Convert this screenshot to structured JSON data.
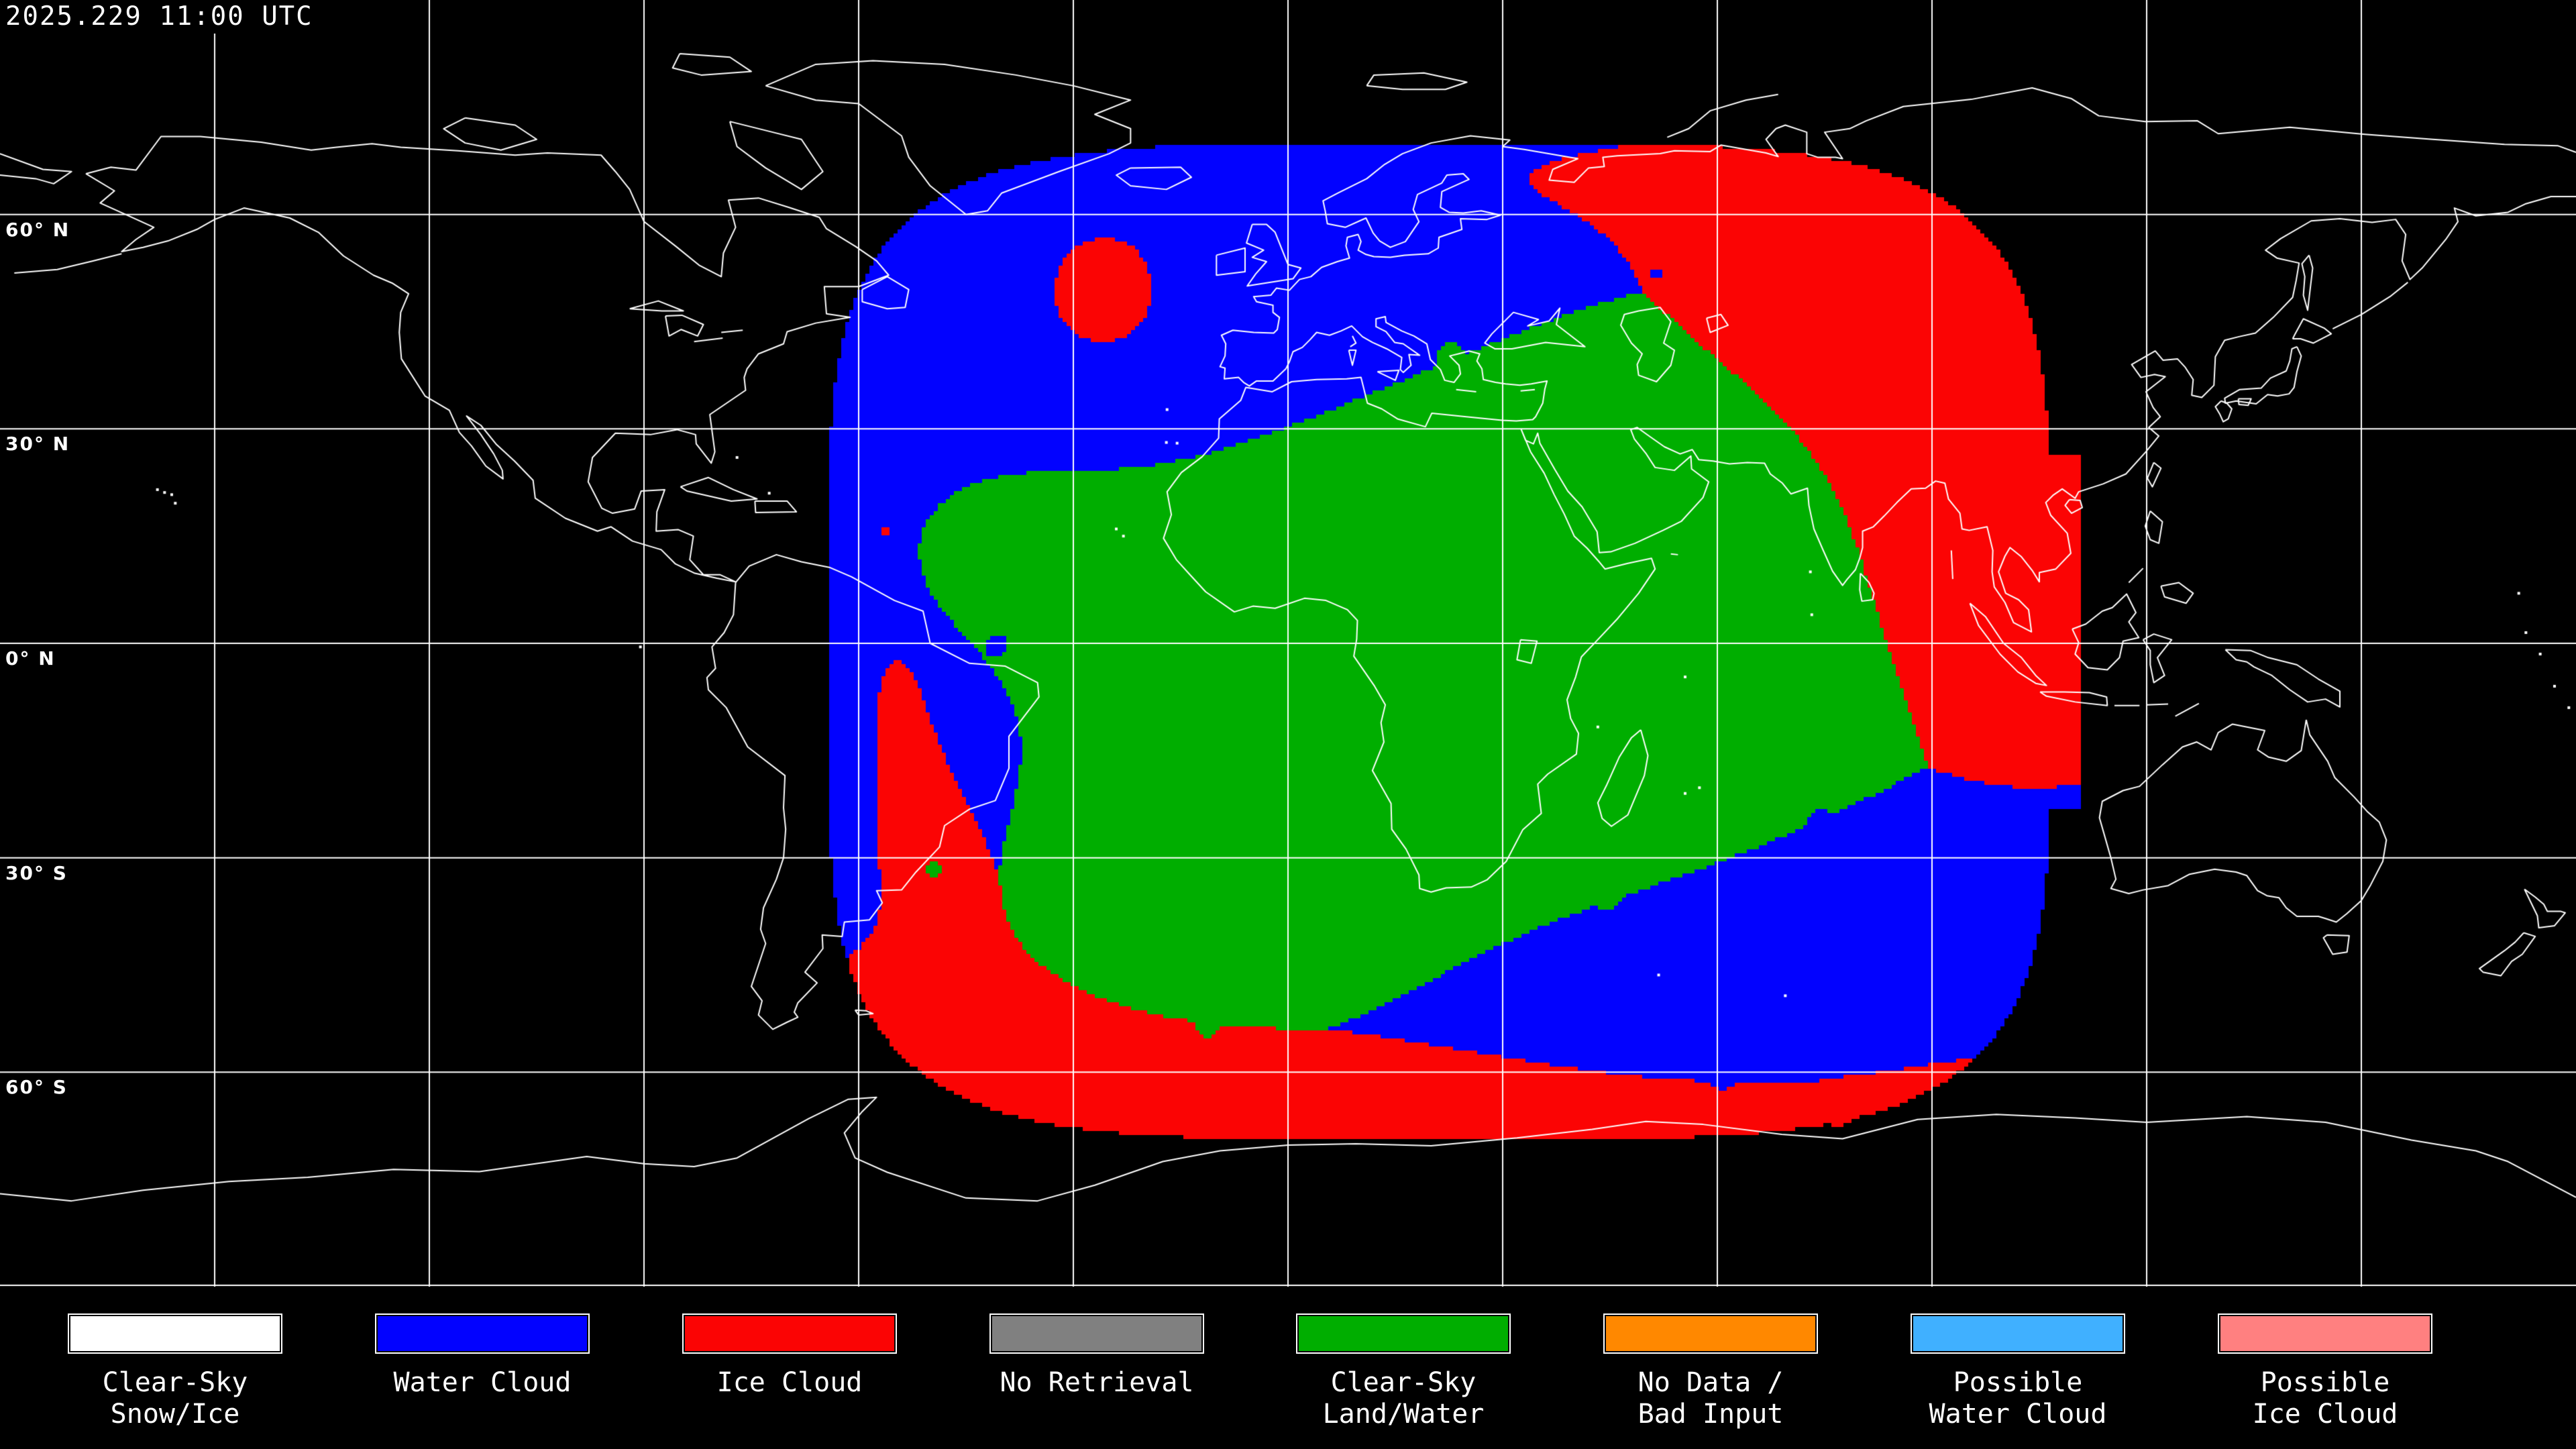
{
  "header": {
    "timestamp": "2025.229 11:00 UTC"
  },
  "map": {
    "background_color": "#000000",
    "gridline_color": "#FFFFFF",
    "coastline_color": "#FFFFFF",
    "grid_interval_deg": 30,
    "latitude_labels": [
      {
        "text": "60° N",
        "lat": 60
      },
      {
        "text": "30° N",
        "lat": 30
      },
      {
        "text": "0° N",
        "lat": 0
      },
      {
        "text": "30° S",
        "lat": -30
      },
      {
        "text": "60° S",
        "lat": -60
      }
    ]
  },
  "classes": {
    "clear_sky_snow_ice": "#FFFFFF",
    "water_cloud": "#0202FF",
    "ice_cloud": "#FB0404",
    "no_retrieval": "#808080",
    "clear_sky_land_water": "#00AE00",
    "no_data_bad_input": "#FF8800",
    "possible_water_cloud": "#40B0FF",
    "possible_ice_cloud": "#FF8080"
  },
  "legend": {
    "items": [
      {
        "key": "clear_sky_snow_ice",
        "color": "#FFFFFF",
        "label_lines": [
          "Clear-Sky",
          "Snow/Ice"
        ]
      },
      {
        "key": "water_cloud",
        "color": "#0202FF",
        "label_lines": [
          "Water Cloud"
        ]
      },
      {
        "key": "ice_cloud",
        "color": "#FB0404",
        "label_lines": [
          "Ice Cloud"
        ]
      },
      {
        "key": "no_retrieval",
        "color": "#808080",
        "label_lines": [
          "No Retrieval"
        ]
      },
      {
        "key": "clear_sky_land_water",
        "color": "#00AE00",
        "label_lines": [
          "Clear-Sky",
          "Land/Water"
        ]
      },
      {
        "key": "no_data_bad_input",
        "color": "#FF8800",
        "label_lines": [
          "No Data /",
          "Bad Input"
        ]
      },
      {
        "key": "possible_water_cloud",
        "color": "#40B0FF",
        "label_lines": [
          "Possible",
          "Water Cloud"
        ]
      },
      {
        "key": "possible_ice_cloud",
        "color": "#FF8080",
        "label_lines": [
          "Possible",
          "Ice Cloud"
        ]
      }
    ]
  }
}
